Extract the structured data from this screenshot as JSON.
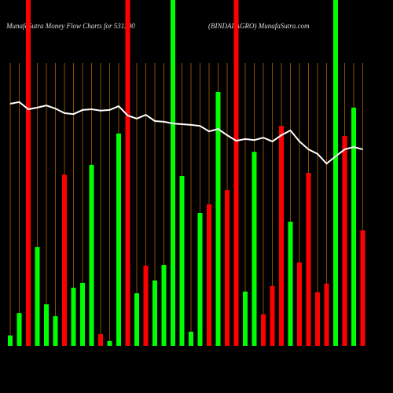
{
  "chart_data": {
    "type": "bar",
    "title": "MunafaSutra  Money Flow  Charts for 531290",
    "subtitle": "(BINDALAGRO) MunafaSutra.com",
    "categories": [
      null,
      null,
      null,
      null,
      null,
      null,
      null,
      null,
      null,
      null,
      null,
      null,
      null,
      null,
      null,
      null,
      null,
      null,
      null,
      null,
      null,
      null,
      null,
      null,
      null,
      null,
      null,
      null,
      null,
      null,
      null,
      null,
      null,
      null,
      null,
      null,
      null,
      null,
      null,
      null
    ],
    "values": [
      3,
      9.5,
      100,
      28.6,
      12,
      8.6,
      49.5,
      16.8,
      18.2,
      52.3,
      3.4,
      1.4,
      61.4,
      100,
      15.2,
      23.2,
      18.9,
      23.4,
      100,
      49.1,
      4.1,
      38.4,
      40.9,
      73.4,
      45,
      100,
      15.7,
      56.1,
      9.1,
      17.3,
      63.6,
      35.9,
      24.1,
      50,
      15.5,
      18,
      100,
      60.7,
      68.9,
      33.4
    ],
    "colors": [
      "#00ff00",
      "#00ff00",
      "#ff0000",
      "#00ff00",
      "#00ff00",
      "#00ff00",
      "#ff0000",
      "#00ff00",
      "#00ff00",
      "#00ff00",
      "#ff0000",
      "#00ff00",
      "#00ff00",
      "#ff0000",
      "#00ff00",
      "#ff0000",
      "#00ff00",
      "#00ff00",
      "#00ff00",
      "#00ff00",
      "#00ff00",
      "#00ff00",
      "#ff0000",
      "#00ff00",
      "#ff0000",
      "#ff0000",
      "#00ff00",
      "#00ff00",
      "#ff0000",
      "#ff0000",
      "#ff0000",
      "#00ff00",
      "#ff0000",
      "#ff0000",
      "#ff0000",
      "#ff0000",
      "#00ff00",
      "#ff0000",
      "#00ff00",
      "#ff0000"
    ],
    "line": {
      "color": "#ffffff",
      "values": [
        70,
        70.5,
        68.4,
        68.9,
        69.5,
        68.6,
        67.3,
        67,
        68.2,
        68.4,
        68,
        68.2,
        69.3,
        66.6,
        65.7,
        66.8,
        65,
        64.8,
        64.3,
        64.1,
        63.9,
        63.6,
        62,
        62.7,
        60.9,
        59.3,
        59.8,
        59.5,
        60.2,
        59.1,
        60.9,
        62.3,
        59.1,
        56.8,
        55.5,
        52.7,
        54.8,
        56.8,
        57.5,
        56.8
      ]
    },
    "ylim": [
      0,
      100
    ],
    "grid": true,
    "grid_color": "#8b4a00"
  }
}
